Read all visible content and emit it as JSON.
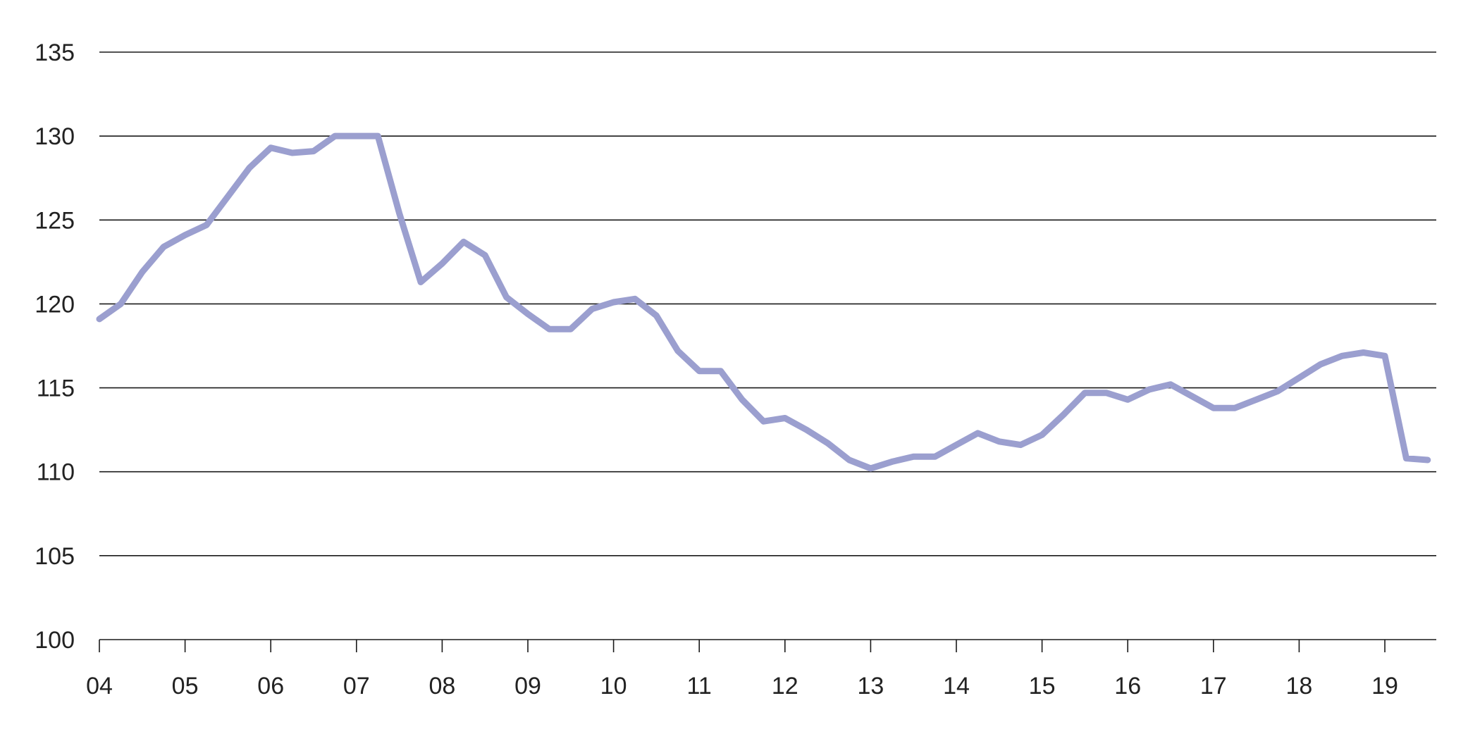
{
  "chart_data": {
    "type": "line",
    "title": "",
    "xlabel": "",
    "ylabel": "",
    "ylim": [
      100,
      135
    ],
    "y_ticks": [
      "100",
      "105",
      "110",
      "115",
      "120",
      "125",
      "130",
      "135"
    ],
    "x_ticks": [
      "04",
      "05",
      "06",
      "07",
      "08",
      "09",
      "10",
      "11",
      "12",
      "13",
      "14",
      "15",
      "16",
      "17",
      "18",
      "19"
    ],
    "xlim": [
      0,
      15.6
    ],
    "grid": true,
    "legend": "none",
    "colors": {
      "series": "#9b9fcf",
      "grid": "#1a1a1a",
      "text": "#222222"
    },
    "series": [
      {
        "x": [
          0,
          0.25,
          0.5,
          0.75,
          1.0,
          1.25,
          1.5,
          1.75,
          2.0,
          2.25,
          2.5,
          2.75,
          3.0,
          3.25,
          3.5,
          3.75,
          4.0,
          4.25,
          4.5,
          4.75,
          5.0,
          5.25,
          5.5,
          5.75,
          6.0,
          6.25,
          6.5,
          6.75,
          7.0,
          7.25,
          7.5,
          7.75,
          8.0,
          8.25,
          8.5,
          8.75,
          9.0,
          9.25,
          9.5,
          9.75,
          10.0,
          10.25,
          10.5,
          10.75,
          11.0,
          11.25,
          11.5,
          11.75,
          12.0,
          12.25,
          12.5,
          12.75,
          13.0,
          13.25,
          13.5,
          13.75,
          14.0,
          14.25,
          14.5,
          14.75,
          15.0,
          15.25,
          15.5
        ],
        "values": [
          119.1,
          120.0,
          121.9,
          123.4,
          124.1,
          124.7,
          126.4,
          128.1,
          129.3,
          129.0,
          129.1,
          130.0,
          130.0,
          130.0,
          125.4,
          121.3,
          122.4,
          123.7,
          122.9,
          120.4,
          119.4,
          118.5,
          118.5,
          119.7,
          120.1,
          120.3,
          119.3,
          117.2,
          116.0,
          116.0,
          114.3,
          113.0,
          113.2,
          112.5,
          111.7,
          110.7,
          110.2,
          110.6,
          110.9,
          110.9,
          111.6,
          112.3,
          111.8,
          111.6,
          112.2,
          113.4,
          114.7,
          114.7,
          114.3,
          114.9,
          115.2,
          114.5,
          113.8,
          113.8,
          114.3,
          114.8,
          115.6,
          116.4,
          116.9,
          117.1,
          116.9,
          110.8,
          110.7
        ]
      }
    ]
  }
}
